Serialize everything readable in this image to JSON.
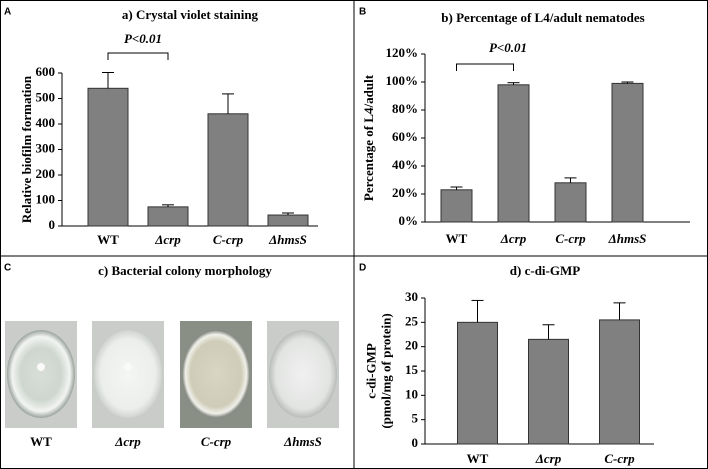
{
  "chart_data": [
    {
      "type": "bar",
      "panel": "A",
      "title": "a) Crystal violet staining",
      "ylabel": [
        "Relative biofilm formation"
      ],
      "categories": [
        "WT",
        "Δcrp",
        "C-crp",
        "ΔhmsS"
      ],
      "category_italic": [
        false,
        true,
        true,
        true
      ],
      "values": [
        540,
        75,
        440,
        43
      ],
      "errors": [
        62,
        8,
        78,
        8
      ],
      "color": "#808080",
      "ylim": [
        0,
        600
      ],
      "yticks": [
        0,
        100,
        200,
        300,
        400,
        500,
        600
      ],
      "annotation": "P<0.01"
    },
    {
      "type": "bar",
      "panel": "B",
      "title": "b) Percentage of L4/adult nematodes",
      "ylabel": [
        "Percentage of L4/adult"
      ],
      "categories": [
        "WT",
        "Δcrp",
        "C-crp",
        "ΔhmsS"
      ],
      "category_italic": [
        false,
        true,
        true,
        true
      ],
      "values": [
        23,
        98,
        28,
        99
      ],
      "errors": [
        2,
        1.5,
        3.5,
        1
      ],
      "color": "#808080",
      "ylim": [
        0,
        120
      ],
      "yticks": [
        {
          "value": 0,
          "label": "0%"
        },
        {
          "value": 20,
          "label": "20%"
        },
        {
          "value": 40,
          "label": "40%"
        },
        {
          "value": 60,
          "label": "60%"
        },
        {
          "value": 80,
          "label": "80%"
        },
        {
          "value": 100,
          "label": "100%"
        },
        {
          "value": 120,
          "label": "120%"
        }
      ],
      "annotation": "P<0.01"
    },
    {
      "type": "bar",
      "panel": "D",
      "title": "d) c-di-GMP",
      "ylabel": [
        "c-di-GMP",
        "(pmol/mg of  protein)"
      ],
      "categories": [
        "WT",
        "Δcrp",
        "C-crp"
      ],
      "category_italic": [
        false,
        true,
        true
      ],
      "values": [
        25,
        21.5,
        25.5
      ],
      "errors": [
        4.5,
        3,
        3.5
      ],
      "color": "#808080",
      "ylim": [
        0,
        30
      ],
      "yticks": [
        0,
        5,
        10,
        15,
        20,
        25,
        30
      ]
    }
  ],
  "colony_panel": {
    "panel": "C",
    "title": "c) Bacterial colony morphology",
    "labels": [
      "WT",
      "Δcrp",
      "C-crp",
      "ΔhmsS"
    ],
    "label_italic": [
      false,
      true,
      true,
      true
    ]
  }
}
